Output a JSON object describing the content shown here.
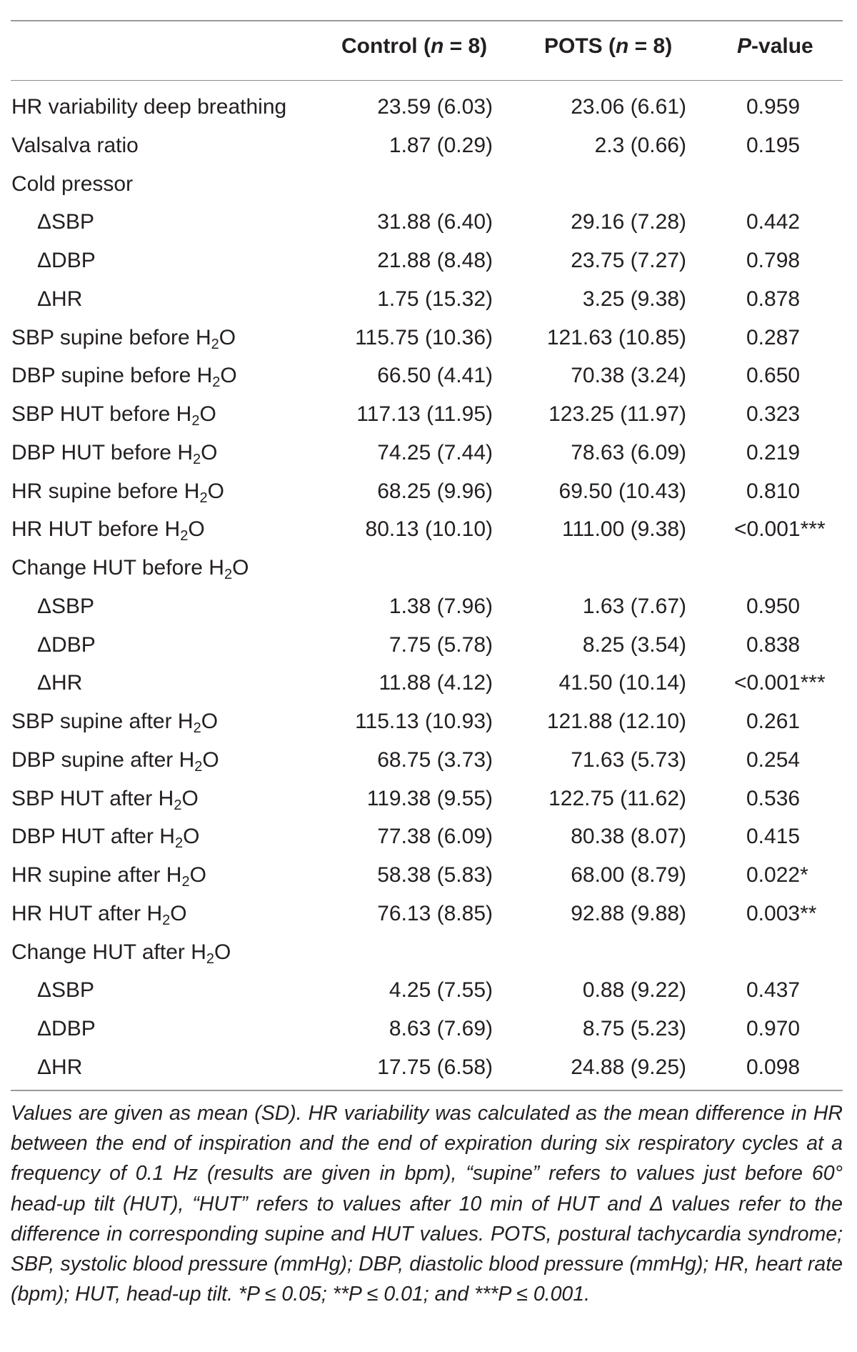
{
  "header": {
    "control": {
      "label": "Control (",
      "n_var": "n",
      "n_val": " = 8)"
    },
    "pots": {
      "label": "POTS (",
      "n_var": "n",
      "n_val": " = 8)"
    },
    "pvalue": {
      "p_var": "P",
      "rest": "-value"
    }
  },
  "rows": [
    {
      "label": "HR variability deep breathing",
      "sub_h2o": false,
      "indent": false,
      "control": "23.59 (6.03)",
      "pots": "23.06 (6.61)",
      "p": "0.959"
    },
    {
      "label": "Valsalva ratio",
      "sub_h2o": false,
      "indent": false,
      "control": "1.87 (0.29)",
      "pots": "2.3 (0.66)",
      "p": "0.195"
    },
    {
      "label": "Cold pressor",
      "sub_h2o": false,
      "indent": false,
      "control": "",
      "pots": "",
      "p": ""
    },
    {
      "label": "ΔSBP",
      "sub_h2o": false,
      "indent": true,
      "control": "31.88 (6.40)",
      "pots": "29.16 (7.28)",
      "p": "0.442"
    },
    {
      "label": "ΔDBP",
      "sub_h2o": false,
      "indent": true,
      "control": "21.88 (8.48)",
      "pots": "23.75 (7.27)",
      "p": "0.798"
    },
    {
      "label": "ΔHR",
      "sub_h2o": false,
      "indent": true,
      "control": "1.75 (15.32)",
      "pots": "3.25 (9.38)",
      "p": "0.878"
    },
    {
      "label": "SBP supine before H",
      "sub_h2o": true,
      "indent": false,
      "control": "115.75 (10.36)",
      "pots": "121.63 (10.85)",
      "p": "0.287"
    },
    {
      "label": "DBP supine before H",
      "sub_h2o": true,
      "indent": false,
      "control": "66.50 (4.41)",
      "pots": "70.38 (3.24)",
      "p": "0.650"
    },
    {
      "label": "SBP HUT before H",
      "sub_h2o": true,
      "indent": false,
      "control": "117.13 (11.95)",
      "pots": "123.25 (11.97)",
      "p": "0.323"
    },
    {
      "label": "DBP HUT before H",
      "sub_h2o": true,
      "indent": false,
      "control": "74.25 (7.44)",
      "pots": "78.63 (6.09)",
      "p": "0.219"
    },
    {
      "label": "HR supine before H",
      "sub_h2o": true,
      "indent": false,
      "control": "68.25 (9.96)",
      "pots": "69.50 (10.43)",
      "p": "0.810"
    },
    {
      "label": "HR HUT before H",
      "sub_h2o": true,
      "indent": false,
      "control": "80.13 (10.10)",
      "pots": "111.00 (9.38)",
      "p": "<0.001***"
    },
    {
      "label": "Change HUT before H",
      "sub_h2o": true,
      "indent": false,
      "control": "",
      "pots": "",
      "p": ""
    },
    {
      "label": "ΔSBP",
      "sub_h2o": false,
      "indent": true,
      "control": "1.38 (7.96)",
      "pots": "1.63 (7.67)",
      "p": "0.950"
    },
    {
      "label": "ΔDBP",
      "sub_h2o": false,
      "indent": true,
      "control": "7.75 (5.78)",
      "pots": "8.25 (3.54)",
      "p": "0.838"
    },
    {
      "label": "ΔHR",
      "sub_h2o": false,
      "indent": true,
      "control": "11.88 (4.12)",
      "pots": "41.50 (10.14)",
      "p": "<0.001***"
    },
    {
      "label": "SBP supine after H",
      "sub_h2o": true,
      "indent": false,
      "control": "115.13 (10.93)",
      "pots": "121.88 (12.10)",
      "p": "0.261"
    },
    {
      "label": "DBP supine after H",
      "sub_h2o": true,
      "indent": false,
      "control": "68.75 (3.73)",
      "pots": "71.63 (5.73)",
      "p": "0.254"
    },
    {
      "label": "SBP HUT after H",
      "sub_h2o": true,
      "indent": false,
      "control": "119.38 (9.55)",
      "pots": "122.75 (11.62)",
      "p": "0.536"
    },
    {
      "label": "DBP HUT after H",
      "sub_h2o": true,
      "indent": false,
      "control": "77.38 (6.09)",
      "pots": "80.38 (8.07)",
      "p": "0.415"
    },
    {
      "label": "HR supine after H",
      "sub_h2o": true,
      "indent": false,
      "control": "58.38 (5.83)",
      "pots": "68.00 (8.79)",
      "p": "0.022*"
    },
    {
      "label": "HR HUT after H",
      "sub_h2o": true,
      "indent": false,
      "control": "76.13 (8.85)",
      "pots": "92.88 (9.88)",
      "p": "0.003**"
    },
    {
      "label": "Change HUT after H",
      "sub_h2o": true,
      "indent": false,
      "control": "",
      "pots": "",
      "p": ""
    },
    {
      "label": "ΔSBP",
      "sub_h2o": false,
      "indent": true,
      "control": "4.25 (7.55)",
      "pots": "0.88 (9.22)",
      "p": "0.437"
    },
    {
      "label": "ΔDBP",
      "sub_h2o": false,
      "indent": true,
      "control": "8.63 (7.69)",
      "pots": "8.75 (5.23)",
      "p": "0.970"
    },
    {
      "label": "ΔHR",
      "sub_h2o": false,
      "indent": true,
      "control": "17.75 (6.58)",
      "pots": "24.88 (9.25)",
      "p": "0.098"
    }
  ],
  "h2o": {
    "sub": "2",
    "tail": "O"
  },
  "footnote": "Values are given as mean (SD). HR variability was calculated as the mean difference in HR between the end of inspiration and the end of expiration during six respiratory cycles at a frequency of 0.1 Hz (results are given in bpm), “supine” refers to values just before 60° head-up tilt (HUT), “HUT” refers to values after 10 min of HUT and Δ values refer to the difference in corresponding supine and HUT values. POTS, postural tachycardia syndrome; SBP, systolic blood pressure (mmHg); DBP, diastolic blood pressure (mmHg); HR, heart rate (bpm); HUT, head-up tilt. *P ≤ 0.05; **P ≤ 0.01; and ***P ≤ 0.001."
}
